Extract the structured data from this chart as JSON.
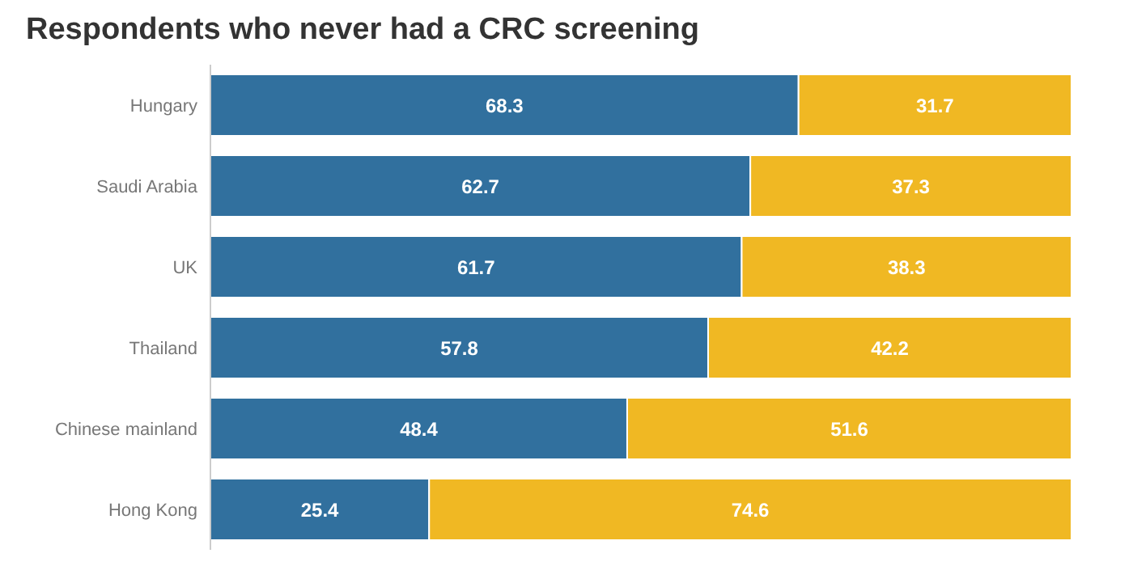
{
  "chart_data": {
    "type": "bar",
    "title": "Respondents who never had a CRC screening",
    "orientation": "horizontal",
    "stacked": true,
    "data_labels": true,
    "categories": [
      "Hungary",
      "Saudi Arabia",
      "UK",
      "Thailand",
      "Chinese mainland",
      "Hong Kong"
    ],
    "xlim": [
      0,
      100
    ],
    "series": [
      {
        "color": "#31709e",
        "values": [
          68.3,
          62.7,
          61.7,
          57.8,
          48.4,
          25.4
        ]
      },
      {
        "color": "#f0b823",
        "values": [
          31.7,
          37.3,
          38.3,
          42.2,
          51.6,
          74.6
        ]
      }
    ]
  }
}
